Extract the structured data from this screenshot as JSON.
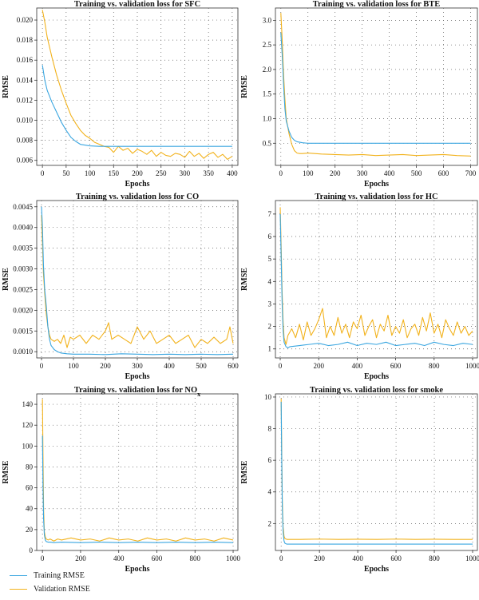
{
  "colors": {
    "training": "#3aa6e0",
    "validation": "#f2b21c"
  },
  "legend": [
    {
      "label": "Training RMSE",
      "color": "#3aa6e0"
    },
    {
      "label": "Validation RMSE",
      "color": "#f2b21c"
    }
  ],
  "chart_data": [
    {
      "id": "sfc",
      "type": "line",
      "title": "Training vs. validation loss for SFC",
      "xlabel": "Epochs",
      "ylabel": "RMSE",
      "xlim": [
        -12,
        412
      ],
      "ylim": [
        0.0055,
        0.0212
      ],
      "xticks": [
        0,
        50,
        100,
        150,
        200,
        250,
        300,
        350,
        400
      ],
      "yticks": [
        0.006,
        0.008,
        0.01,
        0.012,
        0.014,
        0.016,
        0.018,
        0.02
      ],
      "ytick_labels": [
        "0.006",
        "0.008",
        "0.010",
        "0.012",
        "0.014",
        "0.016",
        "0.018",
        "0.020"
      ],
      "grid": true,
      "series": [
        {
          "name": "Training RMSE",
          "x": [
            0,
            5,
            10,
            20,
            30,
            40,
            50,
            60,
            70,
            80,
            100,
            120,
            150,
            200,
            250,
            300,
            350,
            400
          ],
          "y": [
            0.0155,
            0.014,
            0.013,
            0.0118,
            0.0108,
            0.0098,
            0.009,
            0.0083,
            0.0079,
            0.0076,
            0.00745,
            0.0074,
            0.0074,
            0.0074,
            0.0074,
            0.0074,
            0.0074,
            0.0074
          ]
        },
        {
          "name": "Validation RMSE",
          "x": [
            0,
            5,
            10,
            20,
            30,
            40,
            50,
            60,
            70,
            80,
            90,
            100,
            110,
            120,
            130,
            140,
            150,
            160,
            170,
            180,
            190,
            200,
            210,
            220,
            230,
            240,
            250,
            260,
            270,
            280,
            290,
            300,
            310,
            320,
            330,
            340,
            350,
            360,
            370,
            380,
            390,
            400
          ],
          "y": [
            0.021,
            0.0198,
            0.0183,
            0.0163,
            0.0145,
            0.013,
            0.0117,
            0.0105,
            0.0097,
            0.009,
            0.0085,
            0.0082,
            0.0078,
            0.0076,
            0.0074,
            0.0073,
            0.0068,
            0.0074,
            0.007,
            0.0072,
            0.0067,
            0.0071,
            0.0069,
            0.0066,
            0.007,
            0.0064,
            0.0068,
            0.0065,
            0.0064,
            0.0067,
            0.0066,
            0.0063,
            0.0069,
            0.0064,
            0.0067,
            0.0062,
            0.0066,
            0.0068,
            0.0063,
            0.0066,
            0.0061,
            0.0064
          ]
        }
      ]
    },
    {
      "id": "bte",
      "type": "line",
      "title": "Training vs. validation loss for BTE",
      "xlabel": "Epochs",
      "ylabel": "RMSE",
      "xlim": [
        -20,
        725
      ],
      "ylim": [
        0.05,
        3.25
      ],
      "xticks": [
        0,
        100,
        200,
        300,
        400,
        500,
        600,
        700
      ],
      "yticks": [
        0.5,
        1.0,
        1.5,
        2.0,
        2.5,
        3.0
      ],
      "ytick_labels": [
        "0.5",
        "1.0",
        "1.5",
        "2.0",
        "2.5",
        "3.0"
      ],
      "grid": true,
      "series": [
        {
          "name": "Training RMSE",
          "x": [
            0,
            5,
            10,
            15,
            20,
            30,
            40,
            50,
            60,
            80,
            100,
            200,
            300,
            400,
            500,
            600,
            700
          ],
          "y": [
            2.75,
            2.3,
            1.7,
            1.2,
            0.95,
            0.75,
            0.62,
            0.56,
            0.53,
            0.51,
            0.5,
            0.5,
            0.5,
            0.5,
            0.5,
            0.5,
            0.5
          ]
        },
        {
          "name": "Validation RMSE",
          "x": [
            0,
            5,
            10,
            15,
            20,
            30,
            40,
            50,
            60,
            70,
            80,
            100,
            150,
            200,
            250,
            300,
            350,
            400,
            450,
            500,
            550,
            600,
            650,
            700
          ],
          "y": [
            3.15,
            2.6,
            1.9,
            1.4,
            1.0,
            0.7,
            0.48,
            0.35,
            0.3,
            0.29,
            0.29,
            0.3,
            0.28,
            0.27,
            0.26,
            0.27,
            0.25,
            0.26,
            0.27,
            0.25,
            0.26,
            0.27,
            0.25,
            0.24
          ]
        }
      ]
    },
    {
      "id": "co",
      "type": "line",
      "title": "Training vs. validation loss for CO",
      "xlabel": "Epochs",
      "ylabel": "RMSE",
      "xlim": [
        -15,
        615
      ],
      "ylim": [
        0.00085,
        0.00465
      ],
      "xticks": [
        0,
        100,
        200,
        300,
        400,
        500,
        600
      ],
      "yticks": [
        0.001,
        0.0015,
        0.002,
        0.0025,
        0.003,
        0.0035,
        0.004,
        0.0045
      ],
      "ytick_labels": [
        "0.0010",
        "0.0015",
        "0.0020",
        "0.0025",
        "0.0030",
        "0.0035",
        "0.0040",
        "0.0045"
      ],
      "grid": true,
      "series": [
        {
          "name": "Training RMSE",
          "x": [
            0,
            3,
            6,
            10,
            15,
            20,
            25,
            30,
            40,
            50,
            60,
            80,
            100,
            150,
            200,
            250,
            300,
            350,
            400,
            450,
            500,
            550,
            600
          ],
          "y": [
            0.0045,
            0.004,
            0.0031,
            0.0025,
            0.0021,
            0.0016,
            0.0013,
            0.00115,
            0.00105,
            0.001,
            0.00097,
            0.00095,
            0.00094,
            0.00094,
            0.00093,
            0.00095,
            0.00094,
            0.00093,
            0.00094,
            0.00093,
            0.00094,
            0.00093,
            0.00094
          ]
        },
        {
          "name": "Validation RMSE",
          "x": [
            0,
            3,
            6,
            10,
            15,
            20,
            25,
            30,
            40,
            50,
            60,
            70,
            80,
            90,
            100,
            120,
            140,
            160,
            180,
            200,
            210,
            220,
            240,
            260,
            280,
            300,
            320,
            340,
            360,
            380,
            400,
            420,
            440,
            460,
            480,
            500,
            520,
            540,
            560,
            580,
            590,
            600
          ],
          "y": [
            0.0043,
            0.0036,
            0.0029,
            0.0024,
            0.0019,
            0.0016,
            0.0014,
            0.0013,
            0.00125,
            0.0013,
            0.0012,
            0.0014,
            0.0011,
            0.00135,
            0.0013,
            0.0014,
            0.0012,
            0.0014,
            0.0013,
            0.0015,
            0.0017,
            0.0013,
            0.0014,
            0.0013,
            0.0012,
            0.0016,
            0.0013,
            0.0015,
            0.0012,
            0.0013,
            0.0014,
            0.0012,
            0.0013,
            0.0014,
            0.0011,
            0.0013,
            0.0012,
            0.00135,
            0.0012,
            0.0013,
            0.0016,
            0.0012
          ]
        }
      ]
    },
    {
      "id": "hc",
      "type": "line",
      "title": "Training vs. validation loss for HC",
      "xlabel": "Epochs",
      "ylabel": "RMSE",
      "xlim": [
        -25,
        1025
      ],
      "ylim": [
        0.6,
        7.6
      ],
      "xticks": [
        0,
        200,
        400,
        600,
        800,
        1000
      ],
      "yticks": [
        1,
        2,
        3,
        4,
        5,
        6,
        7
      ],
      "ytick_labels": [
        "1",
        "2",
        "3",
        "4",
        "5",
        "6",
        "7"
      ],
      "grid": true,
      "series": [
        {
          "name": "Training RMSE",
          "x": [
            0,
            5,
            10,
            15,
            20,
            30,
            40,
            50,
            100,
            150,
            200,
            250,
            300,
            350,
            400,
            450,
            500,
            550,
            600,
            650,
            700,
            750,
            800,
            850,
            900,
            950,
            1000
          ],
          "y": [
            7.0,
            5.0,
            3.0,
            1.8,
            1.3,
            1.1,
            1.05,
            1.1,
            1.15,
            1.2,
            1.25,
            1.15,
            1.2,
            1.3,
            1.15,
            1.25,
            1.2,
            1.3,
            1.15,
            1.2,
            1.25,
            1.15,
            1.3,
            1.2,
            1.15,
            1.25,
            1.2
          ]
        },
        {
          "name": "Validation RMSE",
          "x": [
            0,
            5,
            10,
            15,
            20,
            30,
            40,
            60,
            80,
            100,
            120,
            140,
            160,
            180,
            200,
            220,
            240,
            260,
            280,
            300,
            320,
            340,
            360,
            380,
            400,
            420,
            440,
            460,
            480,
            500,
            520,
            540,
            560,
            580,
            600,
            620,
            640,
            660,
            680,
            700,
            720,
            740,
            760,
            780,
            800,
            820,
            840,
            860,
            880,
            900,
            920,
            940,
            960,
            980,
            1000
          ],
          "y": [
            7.3,
            5.5,
            3.5,
            2.2,
            1.5,
            1.2,
            1.6,
            1.9,
            1.5,
            2.1,
            1.4,
            2.2,
            1.6,
            1.9,
            2.3,
            2.8,
            1.5,
            2.0,
            1.6,
            2.4,
            1.7,
            2.1,
            1.5,
            2.2,
            1.9,
            2.5,
            1.6,
            2.0,
            2.3,
            1.5,
            2.1,
            1.8,
            2.5,
            1.6,
            2.0,
            1.7,
            2.3,
            1.5,
            1.9,
            2.1,
            1.6,
            2.4,
            1.8,
            2.6,
            1.7,
            2.1,
            1.5,
            2.3,
            1.9,
            1.6,
            2.2,
            1.7,
            2.0,
            1.6,
            1.8
          ]
        }
      ]
    },
    {
      "id": "nox",
      "type": "line",
      "title": "Training vs. validation loss for NO",
      "title_subscript": "x",
      "xlabel": "Epochs",
      "ylabel": "RMSE",
      "xlim": [
        -30,
        1025
      ],
      "ylim": [
        0,
        150
      ],
      "xticks": [
        0,
        200,
        400,
        600,
        800,
        1000
      ],
      "yticks": [
        0,
        20,
        40,
        60,
        80,
        100,
        120,
        140
      ],
      "ytick_labels": [
        "0",
        "20",
        "40",
        "60",
        "80",
        "100",
        "120",
        "140"
      ],
      "grid": true,
      "series": [
        {
          "name": "Training RMSE",
          "x": [
            0,
            3,
            6,
            10,
            15,
            20,
            30,
            40,
            60,
            100,
            200,
            300,
            400,
            500,
            600,
            700,
            800,
            900,
            1000
          ],
          "y": [
            110,
            60,
            30,
            15,
            10,
            8.5,
            8,
            8,
            7.5,
            8,
            7.5,
            8,
            7.5,
            8,
            7.5,
            8,
            7.5,
            8,
            7.5
          ]
        },
        {
          "name": "Validation RMSE",
          "x": [
            0,
            3,
            6,
            10,
            15,
            20,
            30,
            40,
            60,
            80,
            100,
            150,
            200,
            250,
            300,
            350,
            400,
            450,
            500,
            550,
            600,
            650,
            700,
            750,
            800,
            850,
            900,
            950,
            1000
          ],
          "y": [
            145,
            90,
            40,
            18,
            13,
            11,
            10,
            11,
            9,
            11,
            10,
            12,
            10,
            11,
            9,
            12,
            10,
            11,
            9,
            12,
            10,
            11,
            9,
            12,
            10,
            11,
            9,
            12,
            10
          ]
        }
      ]
    },
    {
      "id": "smoke",
      "type": "line",
      "title": "Training vs. validation loss for smoke",
      "xlabel": "Epochs",
      "ylabel": "RMSE",
      "xlim": [
        -30,
        1025
      ],
      "ylim": [
        0.3,
        10.2
      ],
      "xticks": [
        0,
        200,
        400,
        600,
        800,
        1000
      ],
      "yticks": [
        2,
        4,
        6,
        8,
        10
      ],
      "ytick_labels": [
        "2",
        "4",
        "6",
        "8",
        "10"
      ],
      "grid": true,
      "series": [
        {
          "name": "Training RMSE",
          "x": [
            0,
            3,
            6,
            10,
            15,
            20,
            30,
            50,
            100,
            200,
            300,
            400,
            500,
            600,
            700,
            800,
            900,
            1000
          ],
          "y": [
            9.7,
            6.0,
            3.0,
            1.5,
            0.9,
            0.75,
            0.7,
            0.7,
            0.7,
            0.7,
            0.7,
            0.7,
            0.7,
            0.7,
            0.7,
            0.7,
            0.7,
            0.7
          ]
        },
        {
          "name": "Validation RMSE",
          "x": [
            0,
            3,
            6,
            10,
            15,
            20,
            30,
            50,
            100,
            200,
            300,
            400,
            500,
            600,
            700,
            800,
            900,
            1000
          ],
          "y": [
            9.9,
            6.5,
            3.5,
            1.8,
            1.2,
            1.05,
            1.0,
            1.0,
            1.0,
            1.02,
            1.0,
            1.01,
            1.0,
            1.02,
            1.0,
            1.01,
            1.0,
            1.0
          ]
        }
      ]
    }
  ]
}
